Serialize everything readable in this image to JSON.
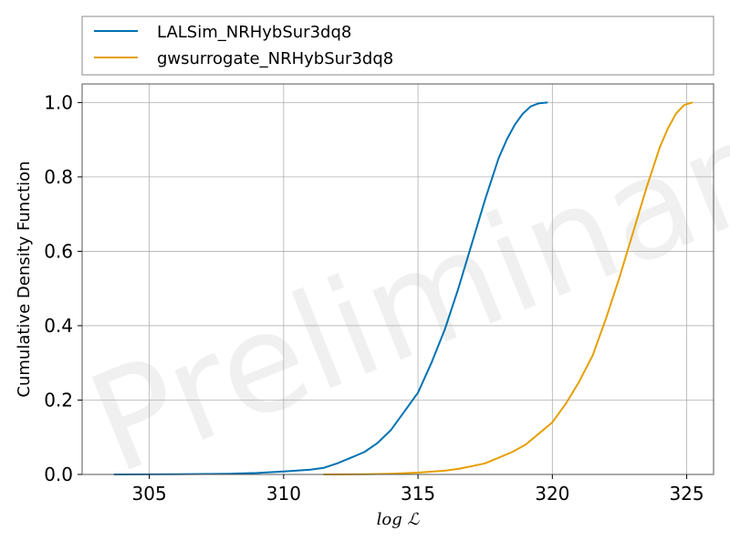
{
  "watermark": "Preliminary",
  "chart_data": {
    "type": "line",
    "xlabel": "log ℒ",
    "ylabel": "Cumulative Density Function",
    "xlim": [
      302.5,
      326.0
    ],
    "ylim": [
      0.0,
      1.05
    ],
    "xticks": [
      305,
      310,
      315,
      320,
      325
    ],
    "xtick_labels": [
      "305",
      "310",
      "315",
      "320",
      "325"
    ],
    "yticks": [
      0.0,
      0.2,
      0.4,
      0.6,
      0.8,
      1.0
    ],
    "ytick_labels": [
      "0.0",
      "0.2",
      "0.4",
      "0.6",
      "0.8",
      "1.0"
    ],
    "grid": true,
    "legend_position": "top (above plot)",
    "series": [
      {
        "name": "LALSim_NRHybSur3dq8",
        "color": "#0072b2",
        "x": [
          303.7,
          306.0,
          308.0,
          309.0,
          310.0,
          311.0,
          311.5,
          312.0,
          312.5,
          313.0,
          313.5,
          314.0,
          314.5,
          315.0,
          315.5,
          316.0,
          316.5,
          317.0,
          317.5,
          318.0,
          318.3,
          318.6,
          318.9,
          319.2,
          319.5,
          319.8
        ],
        "y": [
          0.0,
          0.0005,
          0.002,
          0.004,
          0.008,
          0.013,
          0.018,
          0.03,
          0.045,
          0.06,
          0.085,
          0.12,
          0.17,
          0.22,
          0.3,
          0.39,
          0.5,
          0.62,
          0.74,
          0.85,
          0.9,
          0.94,
          0.97,
          0.99,
          0.998,
          1.0
        ]
      },
      {
        "name": "gwsurrogate_NRHybSur3dq8",
        "color": "#e69f00",
        "x": [
          311.5,
          313.0,
          314.0,
          315.0,
          316.0,
          316.5,
          317.0,
          317.5,
          318.0,
          318.5,
          319.0,
          319.5,
          320.0,
          320.5,
          321.0,
          321.5,
          322.0,
          322.5,
          323.0,
          323.5,
          324.0,
          324.3,
          324.6,
          324.9,
          325.2
        ],
        "y": [
          0.0,
          0.0005,
          0.002,
          0.005,
          0.01,
          0.015,
          0.022,
          0.03,
          0.045,
          0.06,
          0.08,
          0.11,
          0.14,
          0.19,
          0.25,
          0.32,
          0.42,
          0.53,
          0.65,
          0.77,
          0.88,
          0.93,
          0.97,
          0.993,
          1.0
        ]
      }
    ]
  }
}
